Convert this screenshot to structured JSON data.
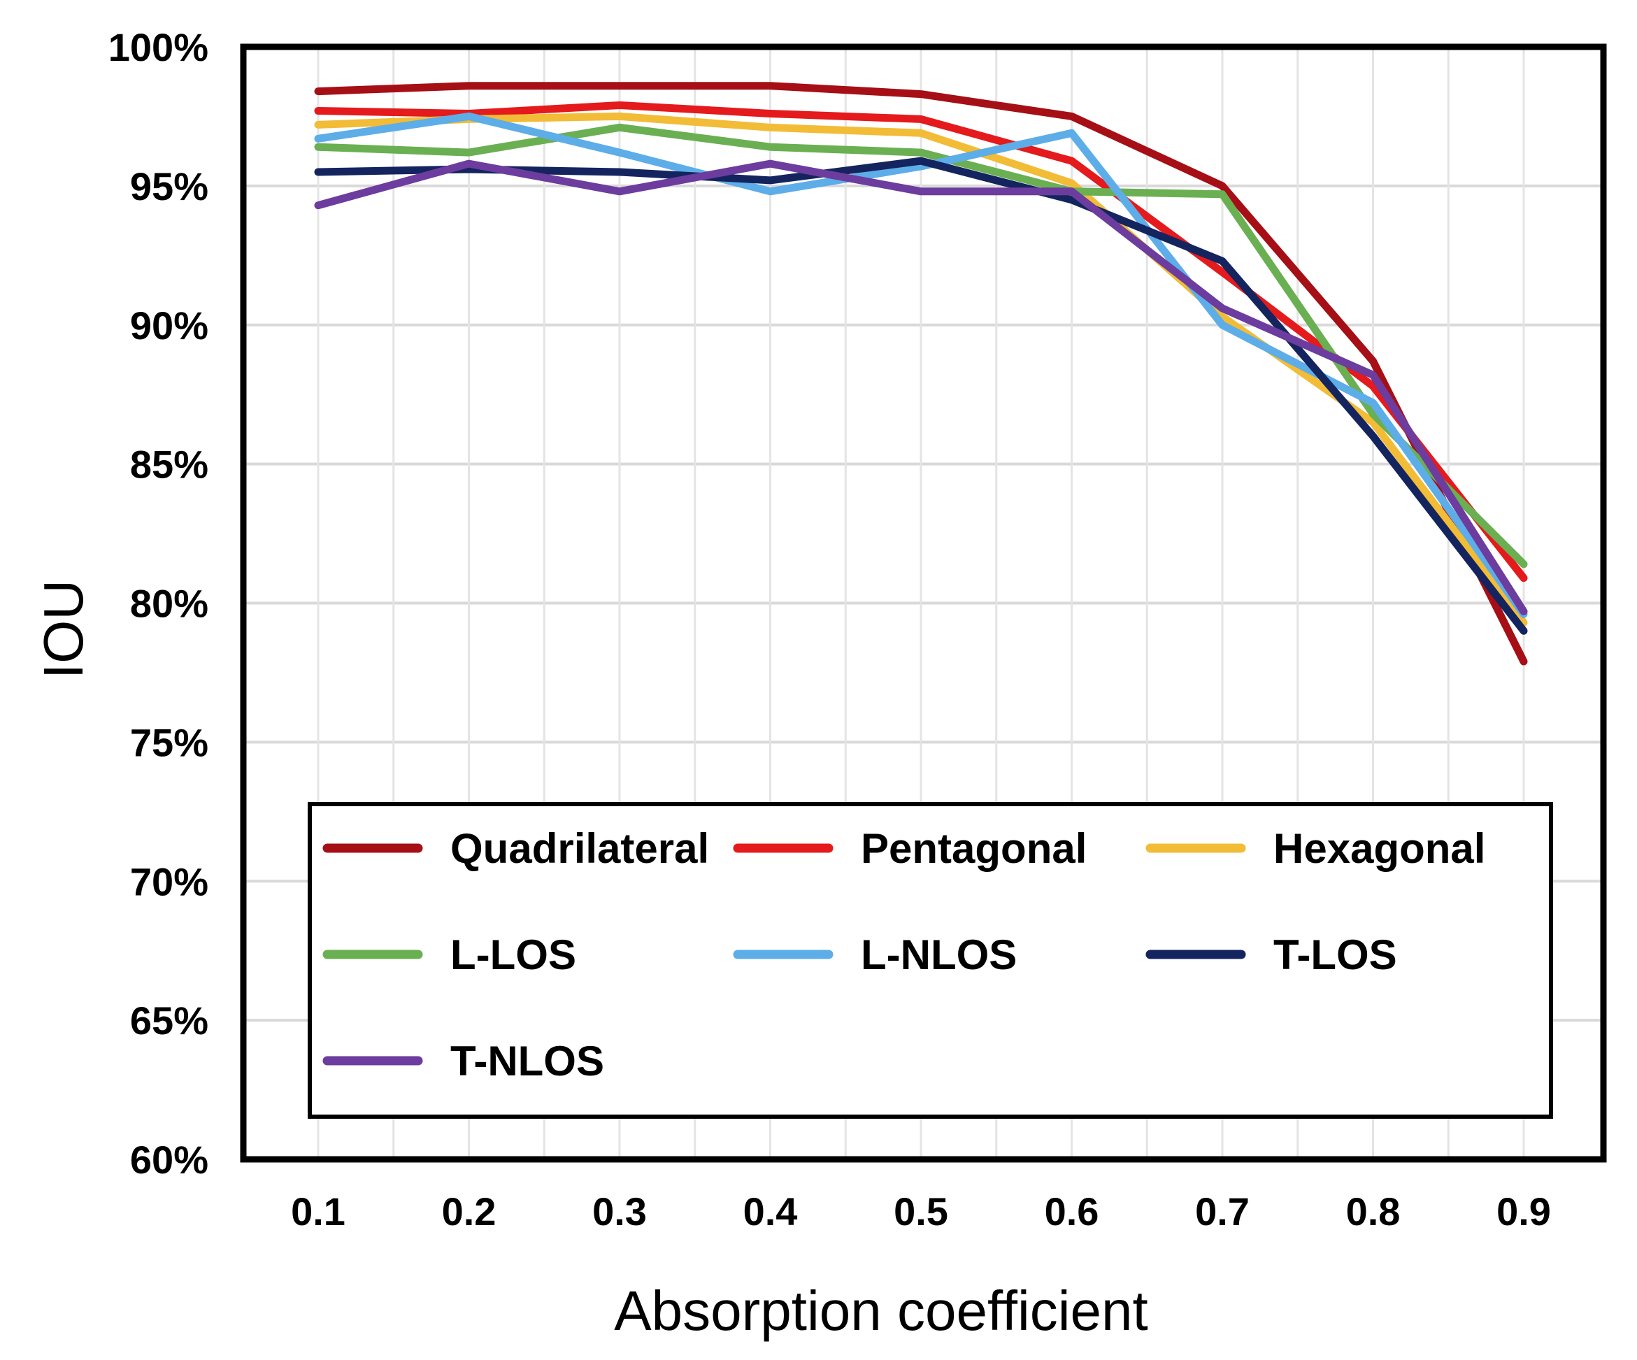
{
  "chart_data": {
    "type": "line",
    "title": "",
    "xlabel": "Absorption coefficient",
    "ylabel": "IOU",
    "x": [
      "0.1",
      "0.2",
      "0.3",
      "0.4",
      "0.5",
      "0.6",
      "0.7",
      "0.8",
      "0.9"
    ],
    "y_ticks": [
      "60%",
      "65%",
      "70%",
      "75%",
      "80%",
      "85%",
      "90%",
      "95%",
      "100%"
    ],
    "ylim": [
      60,
      100
    ],
    "y_unit": "%",
    "grid": true,
    "legend_position": "bottom-inside",
    "series": [
      {
        "name": "Quadrilateral",
        "color": "#A50F15",
        "values": [
          98.4,
          98.6,
          98.6,
          98.6,
          98.3,
          97.5,
          95.0,
          88.7,
          77.9
        ]
      },
      {
        "name": "Pentagonal",
        "color": "#E41A1C",
        "values": [
          97.7,
          97.6,
          97.9,
          97.6,
          97.4,
          95.9,
          91.9,
          87.8,
          80.9
        ]
      },
      {
        "name": "Hexagonal",
        "color": "#F2BC37",
        "values": [
          97.2,
          97.4,
          97.5,
          97.1,
          96.9,
          95.1,
          90.3,
          86.5,
          79.3
        ]
      },
      {
        "name": "L-LOS",
        "color": "#6AAF52",
        "values": [
          96.4,
          96.2,
          97.1,
          96.4,
          96.2,
          94.8,
          94.7,
          86.8,
          81.4
        ]
      },
      {
        "name": "L-NLOS",
        "color": "#5DADE8",
        "values": [
          96.7,
          97.5,
          96.2,
          94.8,
          95.7,
          96.9,
          90.0,
          87.2,
          79.6
        ]
      },
      {
        "name": "T-LOS",
        "color": "#14245E",
        "values": [
          95.5,
          95.6,
          95.5,
          95.2,
          95.9,
          94.5,
          92.3,
          86.0,
          79.0
        ]
      },
      {
        "name": "T-NLOS",
        "color": "#6C3C9E",
        "values": [
          94.3,
          95.8,
          94.8,
          95.8,
          94.8,
          94.8,
          90.6,
          88.2,
          79.7
        ]
      }
    ]
  }
}
